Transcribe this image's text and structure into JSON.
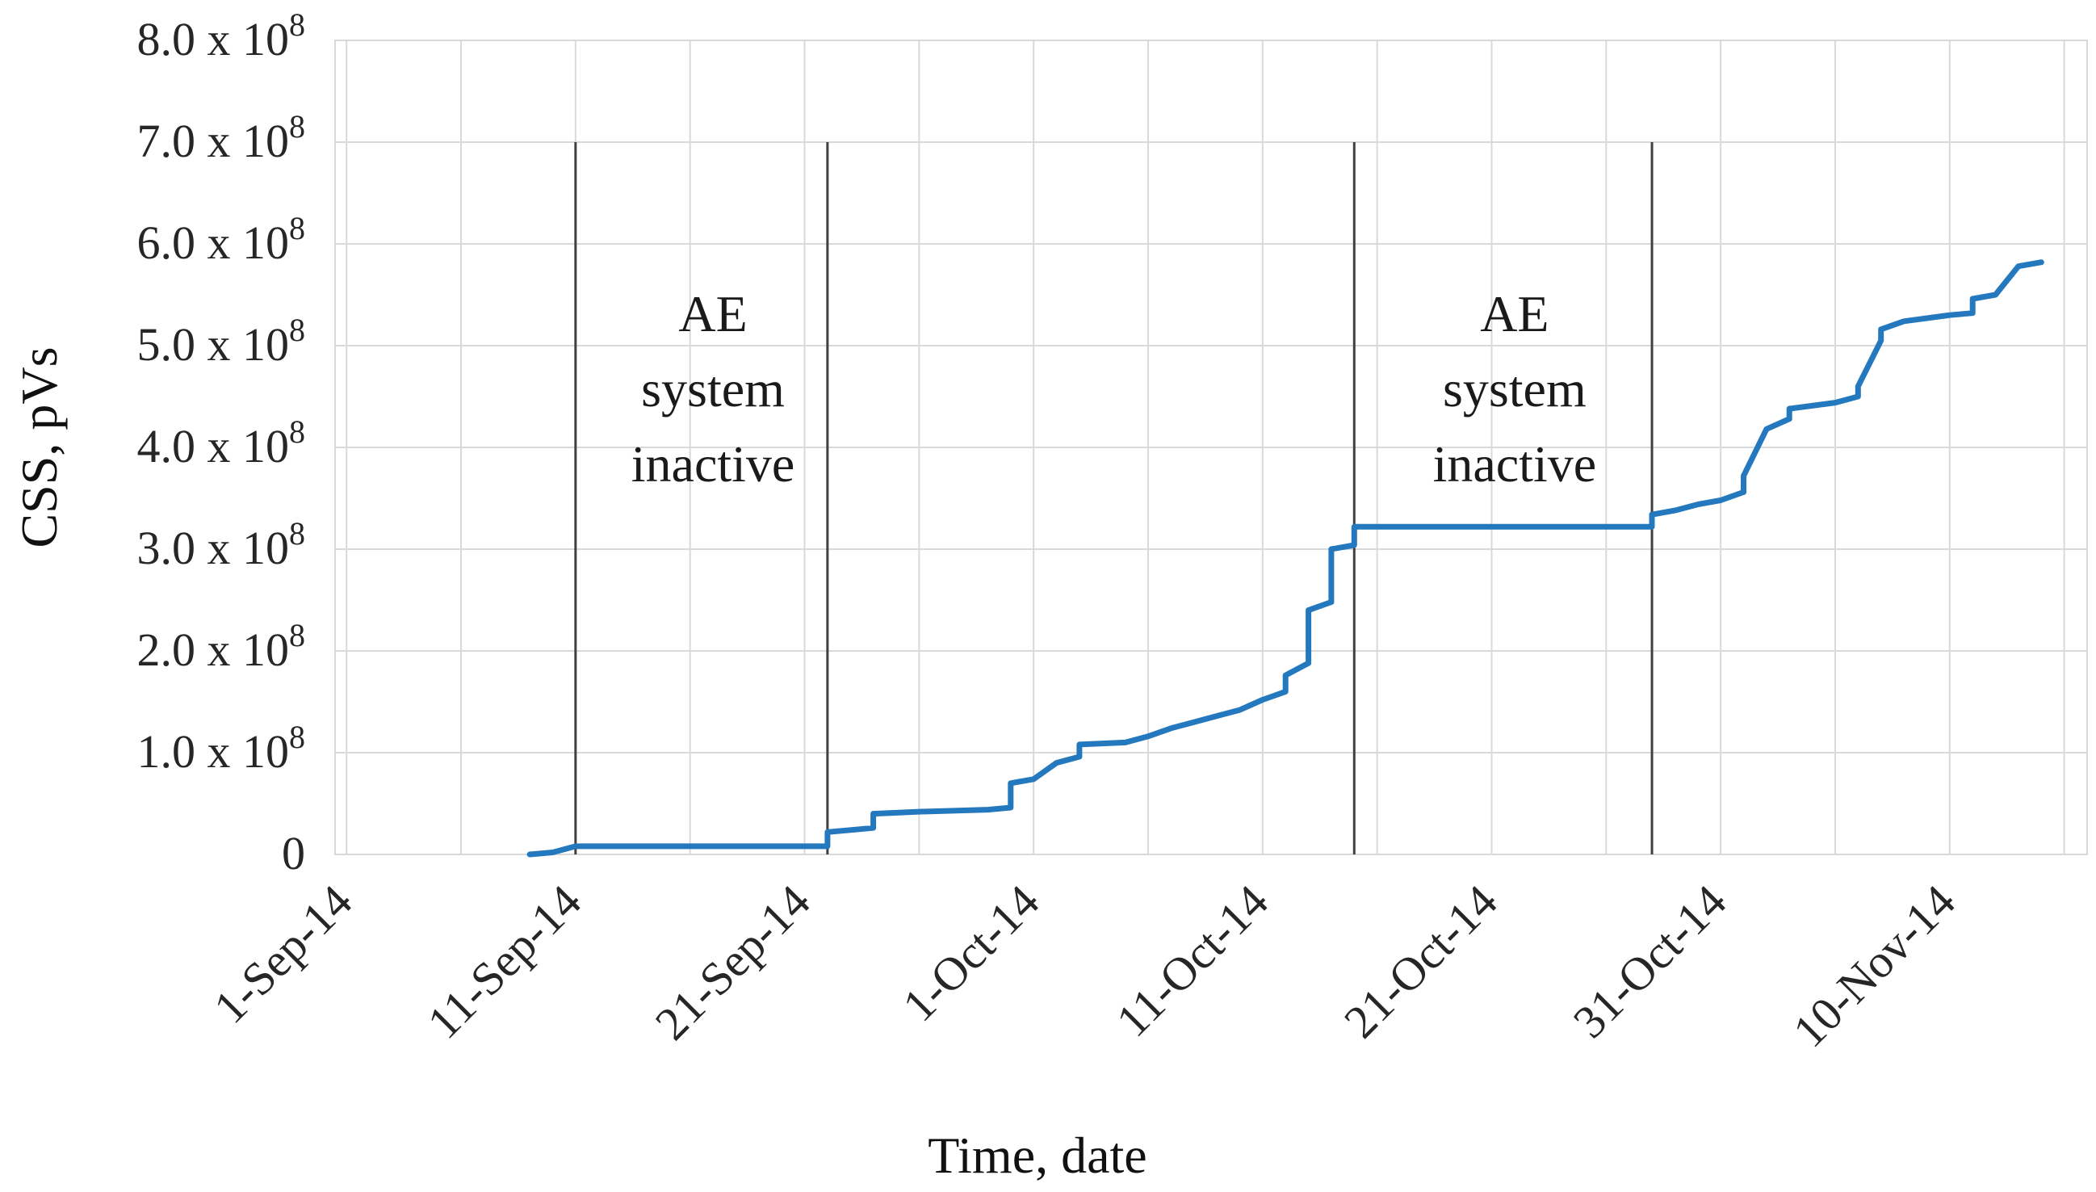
{
  "chart_data": {
    "type": "line",
    "title": "",
    "xlabel": "Time, date",
    "ylabel": "CSS, pVs",
    "x_start": "2014-09-01",
    "x_end": "2014-11-16",
    "ylim": [
      0,
      800000000
    ],
    "grid": true,
    "legend": "none",
    "series_color": "#2478bd",
    "x_ticks": [
      {
        "date": "2014-09-01",
        "label": "1-Sep-14"
      },
      {
        "date": "2014-09-11",
        "label": "11-Sep-14"
      },
      {
        "date": "2014-09-21",
        "label": "21-Sep-14"
      },
      {
        "date": "2014-10-01",
        "label": "1-Oct-14"
      },
      {
        "date": "2014-10-11",
        "label": "11-Oct-14"
      },
      {
        "date": "2014-10-21",
        "label": "21-Oct-14"
      },
      {
        "date": "2014-10-31",
        "label": "31-Oct-14"
      },
      {
        "date": "2014-11-10",
        "label": "10-Nov-14"
      }
    ],
    "y_ticks": [
      {
        "value": 0,
        "mantissa": "0",
        "exp": ""
      },
      {
        "value": 100000000,
        "mantissa": "1.0 x 10",
        "exp": "8"
      },
      {
        "value": 200000000,
        "mantissa": "2.0 x 10",
        "exp": "8"
      },
      {
        "value": 300000000,
        "mantissa": "3.0 x 10",
        "exp": "8"
      },
      {
        "value": 400000000,
        "mantissa": "4.0 x 10",
        "exp": "8"
      },
      {
        "value": 500000000,
        "mantissa": "5.0 x 10",
        "exp": "8"
      },
      {
        "value": 600000000,
        "mantissa": "6.0 x 10",
        "exp": "8"
      },
      {
        "value": 700000000,
        "mantissa": "7.0 x 10",
        "exp": "8"
      },
      {
        "value": 800000000,
        "mantissa": "8.0 x 10",
        "exp": "8"
      }
    ],
    "markers": [
      {
        "date": "2014-09-11",
        "top": 700000000
      },
      {
        "date": "2014-09-22",
        "top": 700000000
      },
      {
        "date": "2014-10-15",
        "top": 700000000
      },
      {
        "date": "2014-10-28",
        "top": 700000000
      }
    ],
    "annotations": [
      {
        "lines": [
          "AE",
          "system",
          "inactive"
        ],
        "date": "2014-09-17",
        "value": 600000000
      },
      {
        "lines": [
          "AE",
          "system",
          "inactive"
        ],
        "date": "2014-10-22",
        "value": 600000000
      }
    ],
    "series": [
      {
        "points": [
          [
            "2014-09-09",
            0
          ],
          [
            "2014-09-10",
            2000000
          ],
          [
            "2014-09-11",
            8000000
          ],
          [
            "2014-09-22",
            8000000
          ],
          [
            "2014-09-22",
            22000000
          ],
          [
            "2014-09-23",
            24000000
          ],
          [
            "2014-09-24",
            26000000
          ],
          [
            "2014-09-24",
            40000000
          ],
          [
            "2014-09-26",
            42000000
          ],
          [
            "2014-09-29",
            44000000
          ],
          [
            "2014-09-30",
            46000000
          ],
          [
            "2014-09-30",
            70000000
          ],
          [
            "2014-10-01",
            74000000
          ],
          [
            "2014-10-02",
            90000000
          ],
          [
            "2014-10-03",
            96000000
          ],
          [
            "2014-10-03",
            108000000
          ],
          [
            "2014-10-05",
            110000000
          ],
          [
            "2014-10-06",
            116000000
          ],
          [
            "2014-10-07",
            124000000
          ],
          [
            "2014-10-08",
            130000000
          ],
          [
            "2014-10-09",
            136000000
          ],
          [
            "2014-10-10",
            142000000
          ],
          [
            "2014-10-11",
            152000000
          ],
          [
            "2014-10-12",
            160000000
          ],
          [
            "2014-10-12",
            176000000
          ],
          [
            "2014-10-13",
            188000000
          ],
          [
            "2014-10-13",
            200000000
          ],
          [
            "2014-10-13",
            240000000
          ],
          [
            "2014-10-14",
            248000000
          ],
          [
            "2014-10-14",
            300000000
          ],
          [
            "2014-10-15",
            304000000
          ],
          [
            "2014-10-15",
            308000000
          ],
          [
            "2014-10-15",
            322000000
          ],
          [
            "2014-10-28",
            322000000
          ],
          [
            "2014-10-28",
            334000000
          ],
          [
            "2014-10-29",
            338000000
          ],
          [
            "2014-10-30",
            344000000
          ],
          [
            "2014-10-31",
            348000000
          ],
          [
            "2014-11-01",
            356000000
          ],
          [
            "2014-11-01",
            372000000
          ],
          [
            "2014-11-02",
            418000000
          ],
          [
            "2014-11-03",
            428000000
          ],
          [
            "2014-11-03",
            438000000
          ],
          [
            "2014-11-05",
            444000000
          ],
          [
            "2014-11-06",
            450000000
          ],
          [
            "2014-11-06",
            460000000
          ],
          [
            "2014-11-07",
            505000000
          ],
          [
            "2014-11-07",
            516000000
          ],
          [
            "2014-11-08",
            524000000
          ],
          [
            "2014-11-10",
            530000000
          ],
          [
            "2014-11-11",
            532000000
          ],
          [
            "2014-11-11",
            546000000
          ],
          [
            "2014-11-12",
            550000000
          ],
          [
            "2014-11-13",
            578000000
          ],
          [
            "2014-11-14",
            582000000
          ]
        ]
      }
    ]
  }
}
